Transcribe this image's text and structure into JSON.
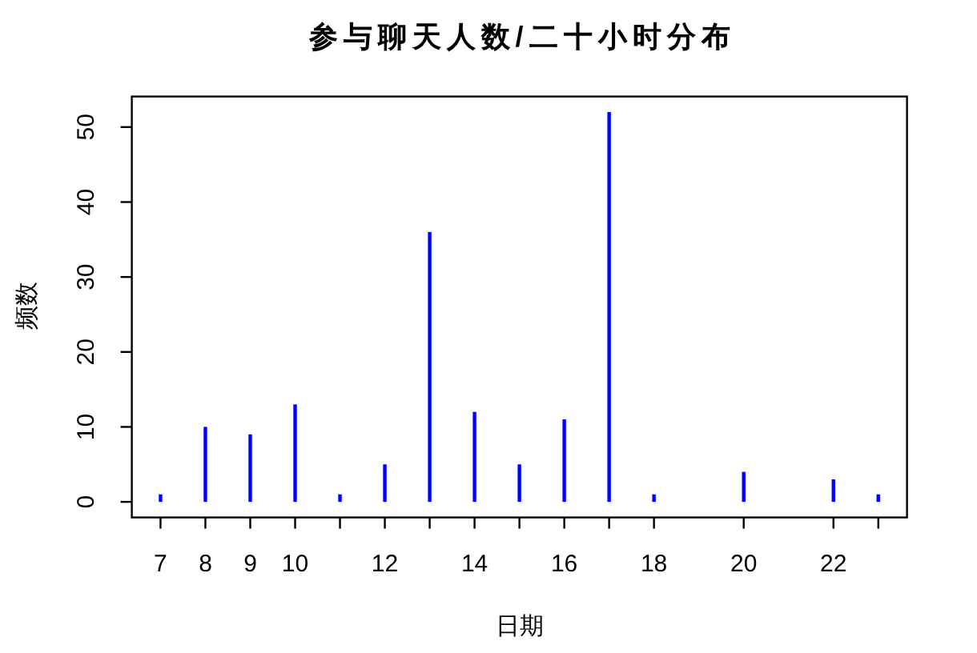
{
  "chart_data": {
    "type": "bar",
    "title": "参与聊天人数/二十小时分布",
    "xlabel": "日期",
    "ylabel": "频数",
    "x": [
      7,
      8,
      9,
      10,
      11,
      12,
      13,
      14,
      15,
      16,
      17,
      18,
      20,
      22,
      23
    ],
    "values": [
      1,
      10,
      9,
      13,
      1,
      5,
      36,
      12,
      5,
      11,
      52,
      1,
      4,
      3,
      1
    ],
    "color": "#0000ff",
    "xlim": [
      6.36,
      23.64
    ],
    "ylim": [
      -2.08,
      54.08
    ],
    "xticks": [
      7,
      8,
      9,
      10,
      {
        "value": 11,
        "label": null
      },
      12,
      {
        "value": 13,
        "label": null
      },
      14,
      {
        "value": 15,
        "label": null
      },
      16,
      {
        "value": 17,
        "label": null
      },
      18,
      20,
      22,
      {
        "value": 23,
        "label": null
      }
    ],
    "yticks": [
      0,
      10,
      20,
      30,
      40,
      50
    ]
  }
}
